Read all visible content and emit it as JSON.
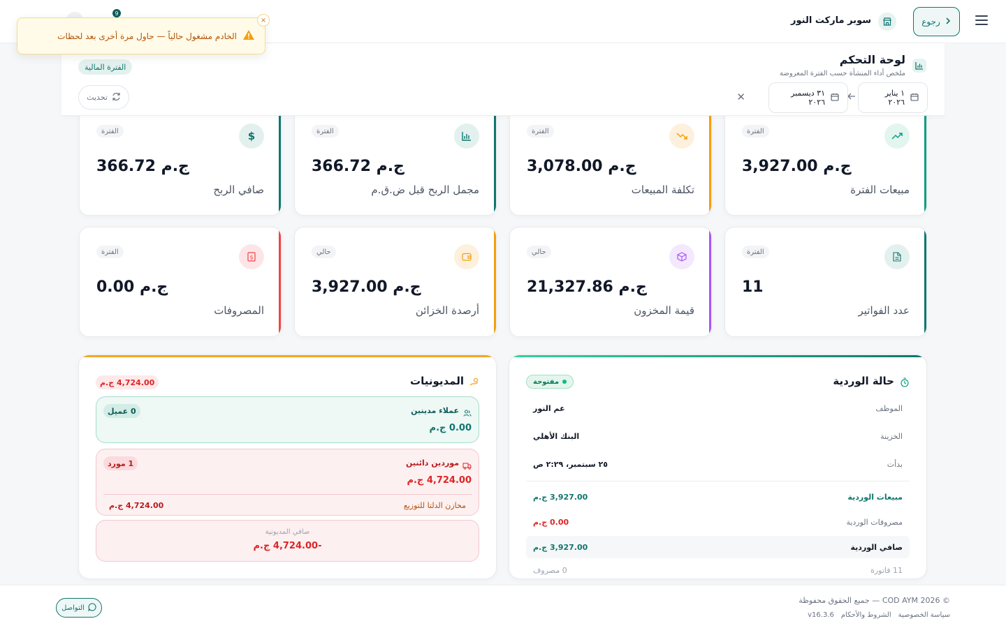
{
  "topbar": {
    "back_label": "رجوع",
    "store_name": "سوبر ماركت النور",
    "notification_count": "9"
  },
  "toast": {
    "message": "الخادم مشغول حالياً — حاول مرة أخرى بعد لحظات",
    "close": "×"
  },
  "header": {
    "title": "لوحة التحكم",
    "subtitle": "ملخص أداء المنشأة حسب الفترة المعروضة",
    "period_badge": "الفترة المالية",
    "refresh_label": "تحديث",
    "date_from": "١ يناير ٢٠٢٦",
    "date_to": "٣١ ديسمبر ٢٠٢٦",
    "clear": "✕"
  },
  "cards": [
    {
      "label": "مبيعات الفترة",
      "value": "ج.م 3,927.00",
      "badge": "الفترة",
      "icon": "trending-up-icon",
      "color": "#0f9d7f",
      "icon_bg": "#e3f5ef"
    },
    {
      "label": "تكلفة المبيعات",
      "value": "ج.م 3,078.00",
      "badge": "الفترة",
      "icon": "trending-down-icon",
      "color": "#f59e0b",
      "icon_bg": "#fdf0dd"
    },
    {
      "label": "مجمل الربح قبل ض.ق.م",
      "value": "ج.م 366.72",
      "badge": "الفترة",
      "icon": "bar-chart-icon",
      "color": "#0f766e",
      "icon_bg": "#e3f1ee"
    },
    {
      "label": "صافي الربح",
      "value": "ج.م 366.72",
      "badge": "الفترة",
      "icon": "dollar-icon",
      "color": "#0f766e",
      "icon_bg": "#e3f1ee"
    },
    {
      "label": "عدد الفواتير",
      "value": "11",
      "badge": "الفترة",
      "icon": "file-icon",
      "color": "#0f766e",
      "icon_bg": "#e3f1ee"
    },
    {
      "label": "قيمة المخزون",
      "value": "ج.م 21,327.86",
      "badge": "حالي",
      "icon": "box-icon",
      "color": "#a855f7",
      "icon_bg": "#f3e8fd"
    },
    {
      "label": "أرصدة الخزائن",
      "value": "ج.م 3,927.00",
      "badge": "حالي",
      "icon": "wallet-icon",
      "color": "#f59e0b",
      "icon_bg": "#fdf0dd"
    },
    {
      "label": "المصروفات",
      "value": "ج.م 0.00",
      "badge": "الفترة",
      "icon": "receipt-icon",
      "color": "#ef4444",
      "icon_bg": "#fde5e7"
    }
  ],
  "shift": {
    "title": "حالة الوردية",
    "status": "مفتوحة",
    "rows": [
      {
        "k": "الموظف",
        "v": "عم النور"
      },
      {
        "k": "الخزينة",
        "v": "البنك الأهلي"
      },
      {
        "k": "بدأت",
        "v": "٢٥ سبتمبر، ٢:٢٩ ص"
      }
    ],
    "sales_label": "مبيعات الوردية",
    "sales_value": "3,927.00 ج.م",
    "expenses_label": "مصروفات الوردية",
    "expenses_value": "0.00 ج.م",
    "net_label": "صافي الوردية",
    "net_value": "3,927.00 ج.م",
    "invoices_count": "11 فاتورة",
    "expenses_count": "0 مصروف"
  },
  "debts": {
    "title": "المديونيات",
    "total_badge": "4,724.00 ج.م",
    "customers_title": "عملاء مدينين",
    "customers_amount": "0.00 ج.م",
    "customers_count": "0 عميل",
    "suppliers_title": "موردين دائنين",
    "suppliers_amount": "4,724.00 ج.م",
    "suppliers_count": "1 مورد",
    "supplier_name": "مخازن الدلتا للتوزيع",
    "supplier_amount": "4,724.00 ج.م",
    "net_label": "صافي المديونية",
    "net_value": "-4,724.00 ج.م"
  },
  "footer": {
    "copyright": "© 2026 COD AYM — جميع الحقوق محفوظة",
    "privacy": "سياسة الخصوصية",
    "terms": "الشروط والأحكام",
    "version": "v16.3.6",
    "contact": "التواصل"
  },
  "colors": {
    "primary": "#0f766e",
    "danger": "#dc2626",
    "warning": "#f59e0b",
    "purple": "#a855f7"
  }
}
